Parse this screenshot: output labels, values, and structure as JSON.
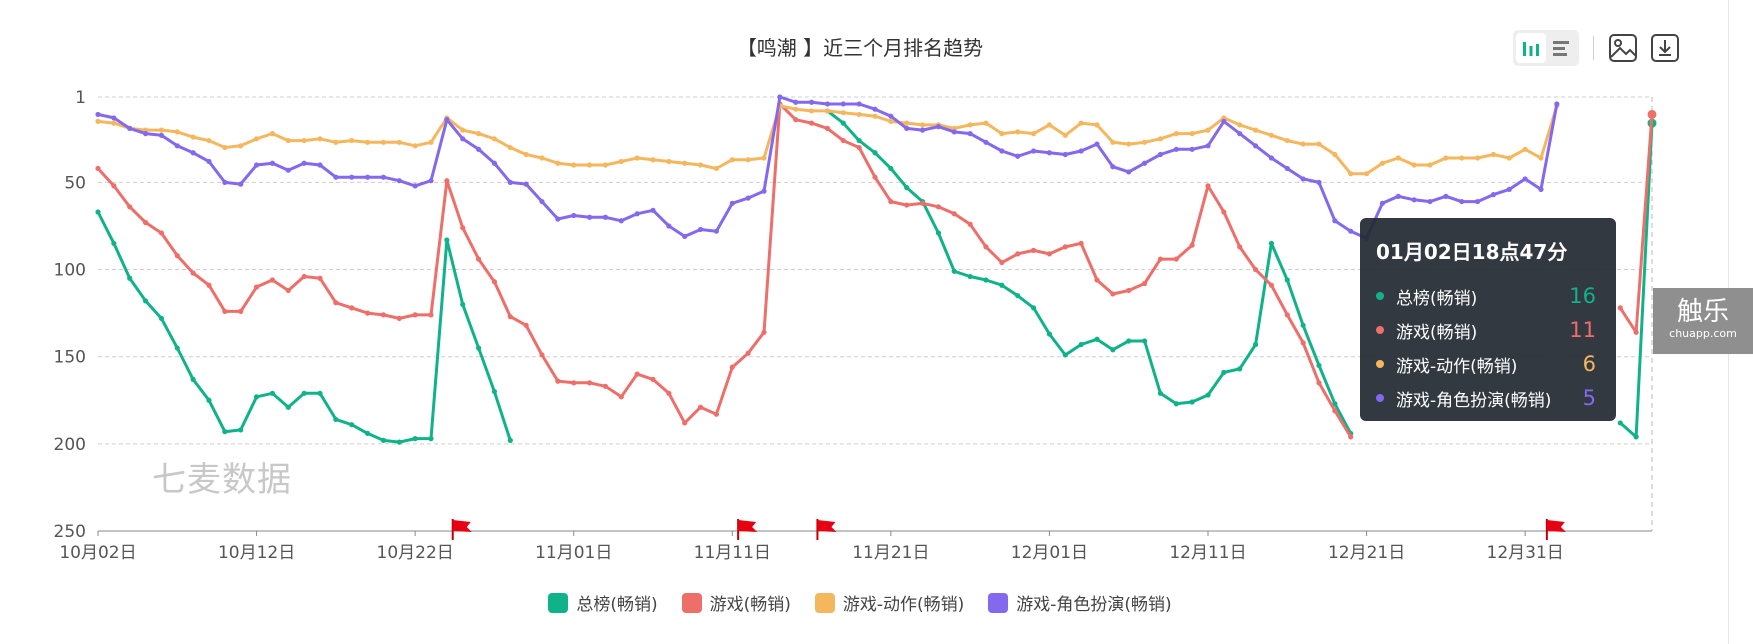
{
  "chart_data": {
    "type": "line",
    "title": "【鸣潮 】近三个月排名趋势",
    "y_inverted": true,
    "ylim": [
      1,
      250
    ],
    "yticks": [
      "1",
      "50",
      "100",
      "150",
      "200",
      "250"
    ],
    "xticks": [
      "10月02日",
      "10月12日",
      "10月22日",
      "11月01日",
      "11月11日",
      "11月21日",
      "12月01日",
      "12月11日",
      "12月21日",
      "12月31日"
    ],
    "grid": true,
    "legend_position": "bottom",
    "series": [
      {
        "name": "总榜(畅销)",
        "color": "#10b389",
        "values": [
          67,
          85,
          105,
          118,
          128,
          145,
          163,
          175,
          193,
          192,
          173,
          171,
          179,
          171,
          171,
          186,
          189,
          194,
          198,
          199,
          197,
          197,
          83,
          120,
          145,
          170,
          198,
          null,
          null,
          null,
          null,
          null,
          null,
          null,
          null,
          null,
          null,
          null,
          null,
          null,
          null,
          null,
          null,
          null,
          null,
          null,
          9,
          16,
          26,
          33,
          42,
          53,
          61,
          79,
          101,
          104,
          106,
          109,
          115,
          122,
          137,
          149,
          143,
          140,
          146,
          141,
          141,
          171,
          177,
          176,
          172,
          159,
          157,
          143,
          85,
          106,
          132,
          155,
          177,
          194,
          null,
          null,
          null,
          null,
          null,
          null,
          null,
          null,
          null,
          null,
          null,
          null,
          null,
          null,
          null,
          null,
          188,
          196,
          16
        ]
      },
      {
        "name": "游戏(畅销)",
        "color": "#ee6e6a",
        "values": [
          42,
          52,
          64,
          73,
          79,
          92,
          102,
          109,
          124,
          124,
          110,
          106,
          112,
          104,
          105,
          119,
          122,
          125,
          126,
          128,
          126,
          126,
          49,
          76,
          94,
          107,
          127,
          132,
          149,
          164,
          165,
          165,
          167,
          173,
          160,
          163,
          171,
          188,
          179,
          183,
          156,
          148,
          136,
          5,
          14,
          16,
          19,
          26,
          30,
          47,
          61,
          63,
          62,
          64,
          68,
          74,
          87,
          96,
          91,
          89,
          91,
          87,
          85,
          106,
          114,
          112,
          108,
          94,
          94,
          86,
          52,
          67,
          87,
          100,
          109,
          126,
          142,
          165,
          181,
          196,
          null,
          null,
          null,
          null,
          null,
          null,
          null,
          null,
          null,
          null,
          null,
          null,
          null,
          null,
          null,
          null,
          122,
          136,
          11
        ]
      },
      {
        "name": "游戏-动作(畅销)",
        "color": "#f5b75e",
        "values": [
          15,
          16,
          19,
          20,
          20,
          21,
          24,
          26,
          30,
          29,
          25,
          22,
          26,
          26,
          25,
          27,
          26,
          27,
          27,
          27,
          29,
          27,
          13,
          20,
          22,
          25,
          30,
          34,
          36,
          39,
          40,
          40,
          40,
          38,
          36,
          37,
          38,
          39,
          40,
          42,
          37,
          37,
          36,
          6,
          8,
          9,
          9,
          10,
          11,
          12,
          15,
          16,
          17,
          17,
          19,
          17,
          16,
          22,
          21,
          22,
          17,
          23,
          16,
          17,
          27,
          28,
          27,
          25,
          22,
          22,
          20,
          13,
          17,
          20,
          23,
          26,
          28,
          28,
          34,
          45,
          45,
          39,
          36,
          40,
          40,
          36,
          36,
          36,
          34,
          36,
          31,
          36,
          6
        ]
      },
      {
        "name": "游戏-角色扮演(畅销)",
        "color": "#8468ee",
        "values": [
          11,
          13,
          19,
          22,
          23,
          29,
          33,
          38,
          50,
          51,
          40,
          39,
          43,
          39,
          40,
          47,
          47,
          47,
          47,
          49,
          52,
          49,
          14,
          25,
          31,
          39,
          50,
          51,
          61,
          71,
          69,
          70,
          70,
          72,
          68,
          66,
          75,
          81,
          77,
          78,
          62,
          59,
          55,
          1,
          4,
          4,
          5,
          5,
          5,
          8,
          12,
          19,
          20,
          18,
          21,
          22,
          27,
          32,
          35,
          32,
          33,
          34,
          32,
          28,
          41,
          44,
          39,
          34,
          31,
          31,
          29,
          15,
          22,
          29,
          36,
          42,
          48,
          50,
          72,
          78,
          82,
          62,
          58,
          60,
          61,
          58,
          61,
          61,
          57,
          54,
          48,
          54,
          5
        ]
      }
    ],
    "event_flags": [
      "10月25日",
      "11月12日",
      "11月17日",
      "01月02日"
    ]
  },
  "tooltip": {
    "title": "01月02日18点47分",
    "rows": [
      {
        "name": "总榜(畅销)",
        "value": "16",
        "color": "#10b389"
      },
      {
        "name": "游戏(畅销)",
        "value": "11",
        "color": "#ee6e6a"
      },
      {
        "name": "游戏-动作(畅销)",
        "value": "6",
        "color": "#f5b75e"
      },
      {
        "name": "游戏-角色扮演(畅销)",
        "value": "5",
        "color": "#8468ee"
      }
    ]
  },
  "watermark": "七麦数据",
  "side_badge": {
    "big": "触乐",
    "small": "chuapp.com"
  },
  "toolbar": {
    "icons": [
      "bar-view-icon",
      "list-view-icon",
      "image-export-icon",
      "download-icon"
    ]
  }
}
